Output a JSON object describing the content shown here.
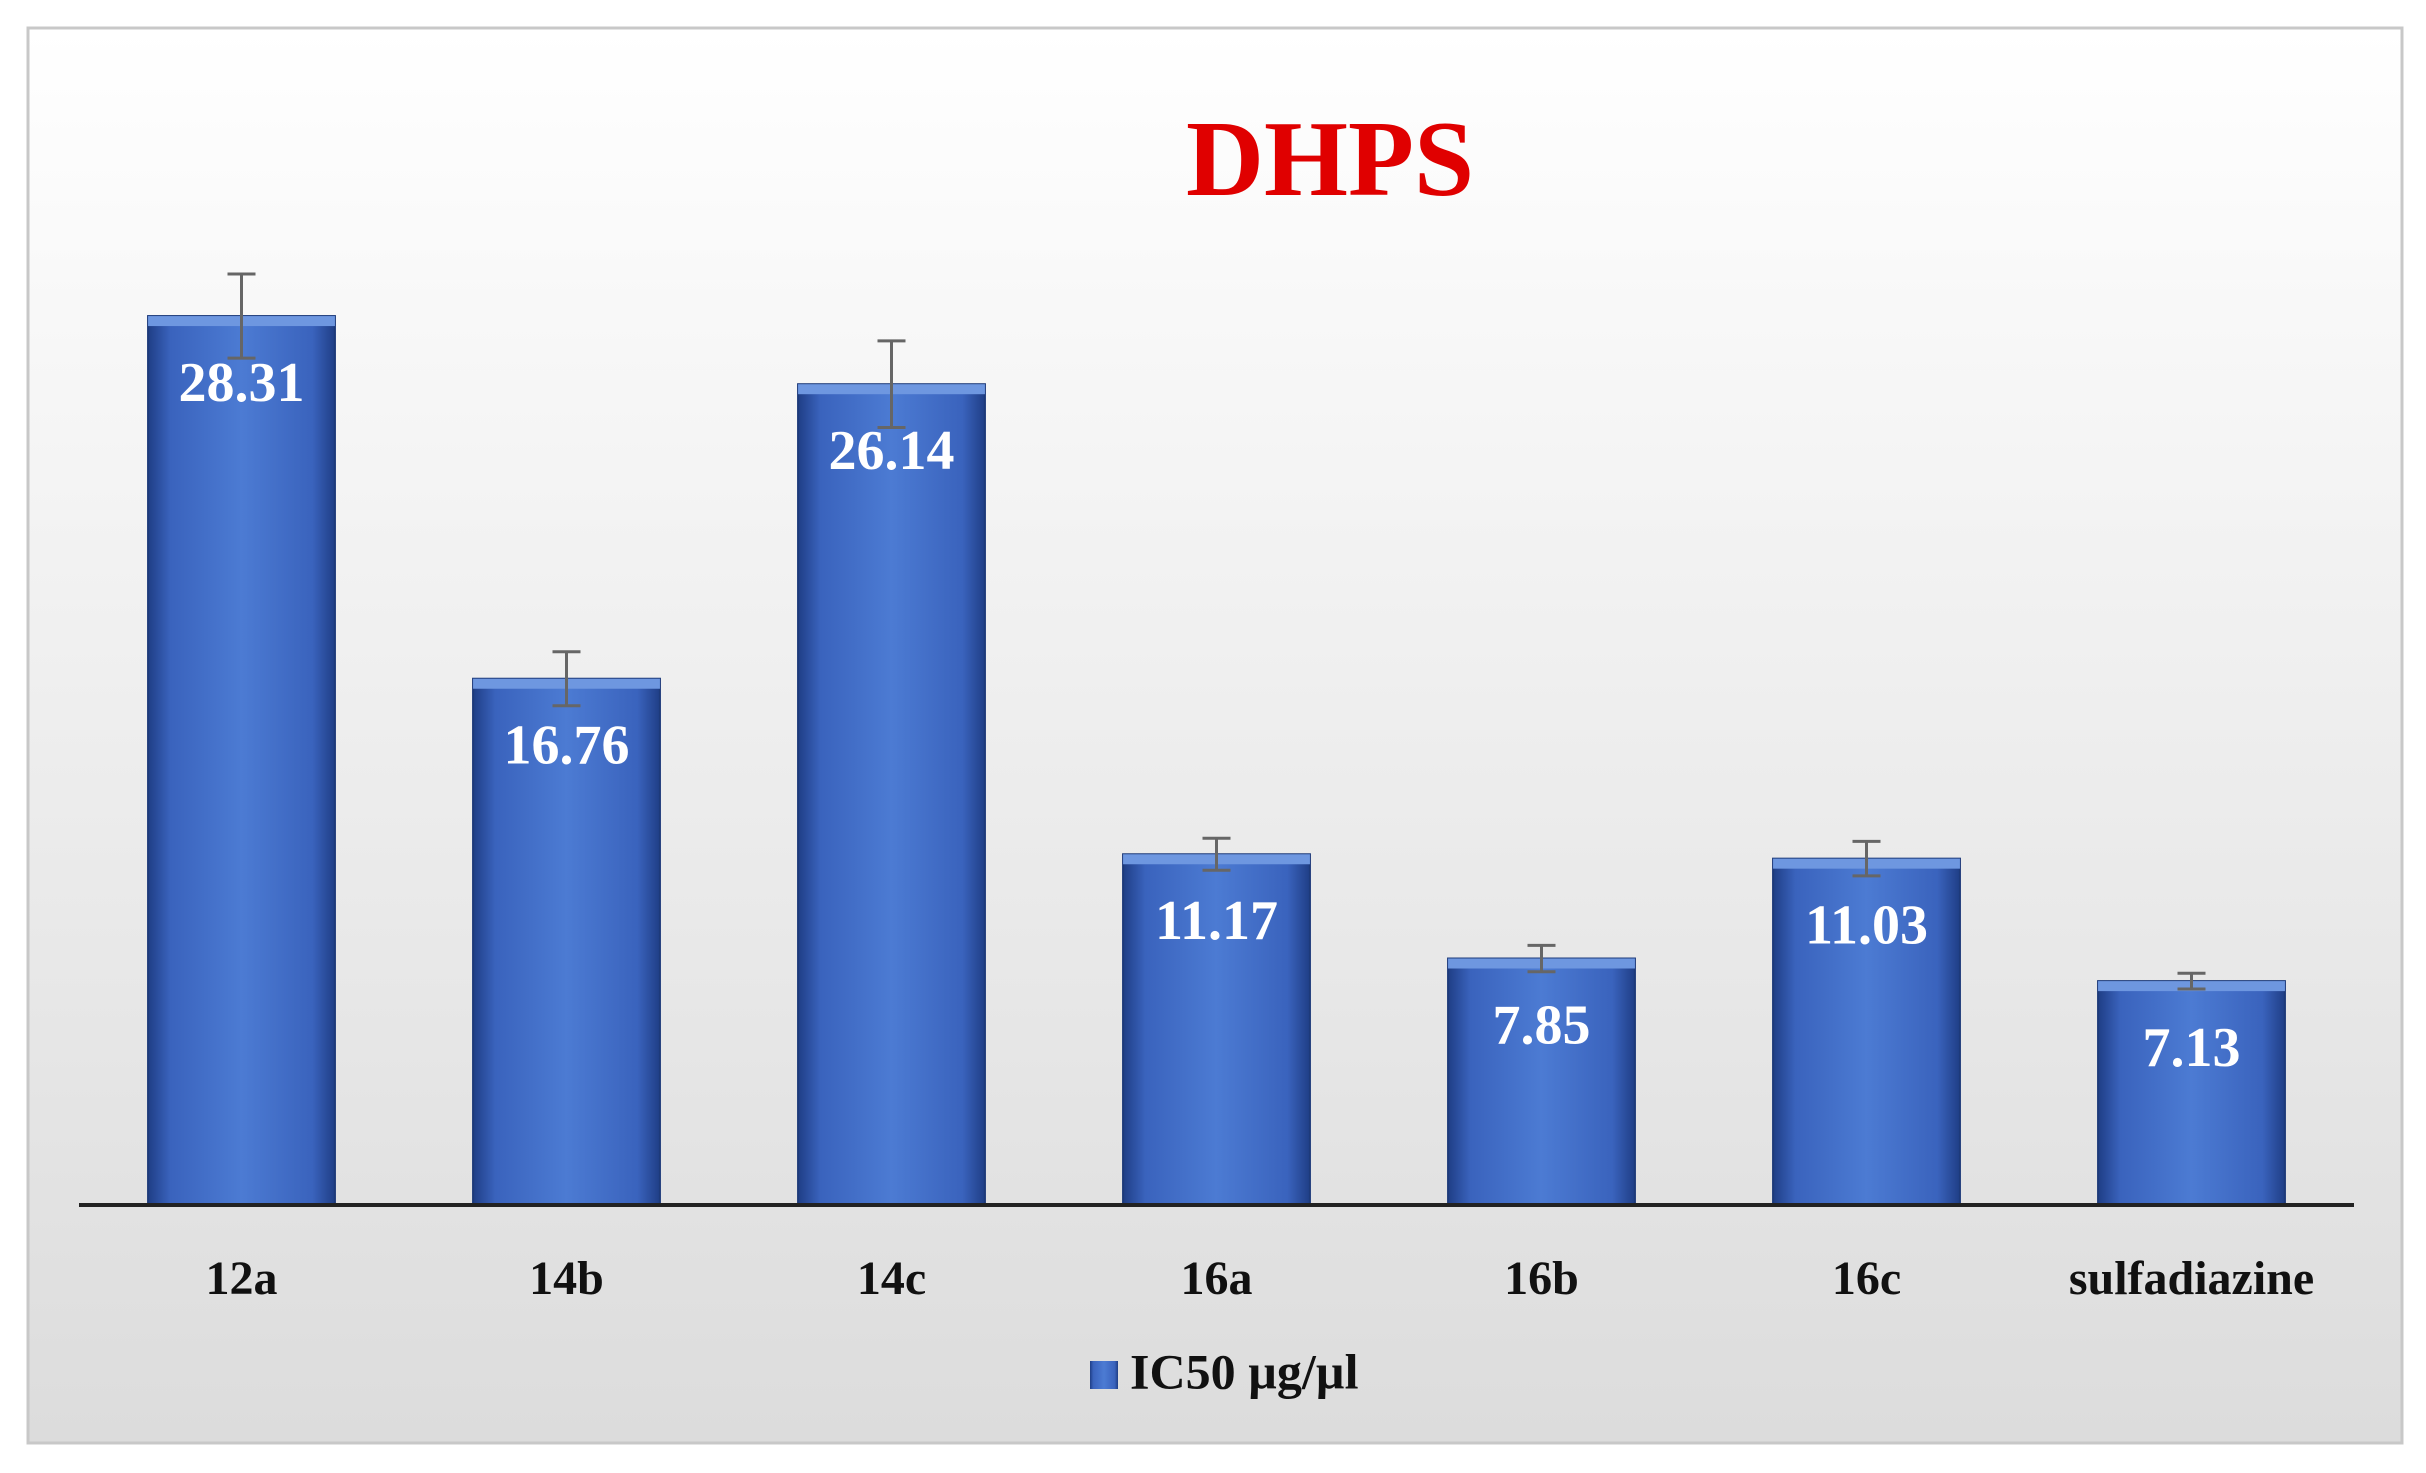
{
  "chart_data": {
    "type": "bar",
    "title": "DHPS",
    "categories": [
      "12a",
      "14b",
      "14c",
      "16a",
      "16b",
      "16c",
      "sulfadiazine"
    ],
    "series": [
      {
        "name": "IC50 µg/µl",
        "color": "#3a63bd",
        "values": [
          28.31,
          16.76,
          26.14,
          11.17,
          7.85,
          11.03,
          7.13
        ],
        "errors": [
          1.34,
          0.86,
          1.38,
          0.51,
          0.42,
          0.55,
          0.25
        ]
      }
    ],
    "ylim": [
      0,
      30
    ]
  }
}
